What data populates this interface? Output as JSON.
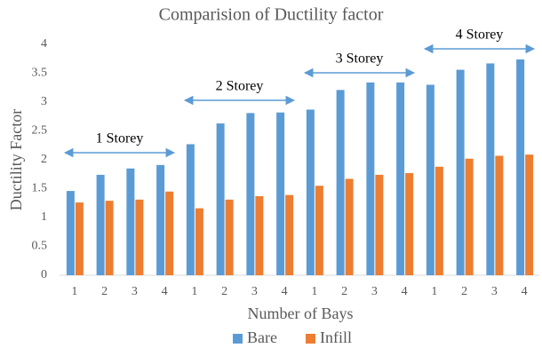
{
  "chart_data": {
    "type": "bar",
    "title": "Comparision of Ductility factor",
    "x_label": "Number of Bays",
    "y_label": "Ductility Factor",
    "categories": [
      "1",
      "2",
      "3",
      "4",
      "1",
      "2",
      "3",
      "4",
      "1",
      "2",
      "3",
      "4",
      "1",
      "2",
      "3",
      "4"
    ],
    "series": [
      {
        "name": "Bare",
        "color": "#5b9bd5",
        "values": [
          1.46,
          1.74,
          1.85,
          1.91,
          2.27,
          2.63,
          2.81,
          2.82,
          2.87,
          3.21,
          3.34,
          3.34,
          3.3,
          3.56,
          3.67,
          3.74
        ]
      },
      {
        "name": "Infill",
        "color": "#ed7d31",
        "values": [
          1.26,
          1.29,
          1.31,
          1.45,
          1.16,
          1.31,
          1.37,
          1.39,
          1.55,
          1.67,
          1.74,
          1.77,
          1.88,
          2.02,
          2.07,
          2.09
        ]
      }
    ],
    "annotations": [
      "1 Storey",
      "2 Storey",
      "3 Storey",
      "4 Storey"
    ],
    "ylim": [
      0,
      4
    ],
    "yticks": [
      0,
      0.5,
      1,
      1.5,
      2,
      2.5,
      3,
      3.5,
      4
    ],
    "grid": false,
    "legend": "bottom"
  }
}
